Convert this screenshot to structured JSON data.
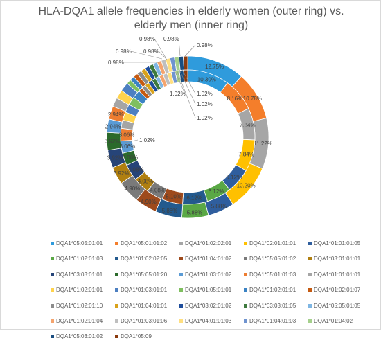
{
  "chart_data": {
    "type": "doughnut",
    "title": "HLA-DQA1 allele frequencies in elderly women (outer ring) vs. elderly men (inner ring)",
    "categories": [
      "DQA1*05:05:01:01",
      "DQA1*05:01:01:02",
      "DQA1*01:02:02:01",
      "DQA1*02:01:01:01",
      "DQA1*01:01:01:05",
      "DQA1*01:02:01:03",
      "DQA1*01:02:02:05",
      "DQA1*01:04:01:02",
      "DQA1*05:05:01:02",
      "DQA1*03:01:01:01",
      "DQA1*03:03:01:01",
      "DQA1*05:05:01:20",
      "DQA1*01:03:01:02",
      "DQA1*05:01:01:03",
      "DQA1*01:01:01:01",
      "DQA1*01:02:01:01",
      "DQA1*01:03:01:01",
      "DQA1*01:05:01:01",
      "DQA1*01:02:01:01",
      "DQA1*01:02:01:07",
      "DQA1*01:02:01:10",
      "DQA1*01:04:01:01",
      "DQA1*03:02:01:02",
      "DQA1*03:03:01:05",
      "DQA1*05:05:01:05",
      "DQA1*01:02:01:04",
      "DQA1*01:03:01:06",
      "DQA1*04:01:01:03",
      "DQA1*01:04:01:03",
      "DQA1*01:04:02",
      "DQA1*05:03:01:02",
      "DQA1*05:09"
    ],
    "colors": [
      "#2f9bdc",
      "#f47e2b",
      "#a6a6a6",
      "#ffc000",
      "#2f5e9e",
      "#5aa845",
      "#235a8e",
      "#9e4a1c",
      "#7a7a7a",
      "#b07f10",
      "#264478",
      "#2b6a2b",
      "#5b9bd5",
      "#ed7d31",
      "#a5a5a5",
      "#ffd34d",
      "#4d7fc1",
      "#7fbf5f",
      "#3b83c4",
      "#c55a11",
      "#8c8c8c",
      "#d9a21b",
      "#1f4e9c",
      "#3e7a3e",
      "#7fb6e3",
      "#f4a46e",
      "#bfbfbf",
      "#ffdf80",
      "#6f93cf",
      "#a5d08c",
      "#1a4d80",
      "#8a3a0e"
    ],
    "series": [
      {
        "ring": "outer",
        "values": [
          12.75,
          10.78,
          11.22,
          10.2,
          5.88,
          5.88,
          5.88,
          4.9,
          4.9,
          3.92,
          3.92,
          3.92,
          2.94,
          2.94,
          1.96,
          1.96,
          1.96,
          1.02,
          1.02,
          1.02,
          1.02,
          1.02,
          0.98,
          0.98,
          0.98,
          0.98,
          0.98,
          0.98,
          0.98,
          0.98,
          0.98,
          0.98
        ]
      },
      {
        "ring": "inner",
        "values": [
          10.3,
          8.16,
          7.84,
          7.84,
          6.12,
          6.12,
          6.12,
          5.1,
          4.08,
          4.08,
          4.08,
          3.06,
          3.06,
          3.06,
          2.04,
          2.04,
          2.04,
          2.04,
          2.04,
          1.02,
          1.02,
          1.02,
          1.02,
          1.02,
          1.02,
          1.02,
          1.02,
          1.02,
          1.02,
          1.02,
          1.02,
          1.02
        ]
      }
    ],
    "data_labels": {
      "outer": [
        "12.75%",
        "10.78%",
        "11.22%",
        "10.20%",
        "5.88%",
        "5.88%",
        "5.88%",
        "4.90%",
        "4.90%",
        "3.92%",
        "3.92%",
        "3.92%",
        "2.94%",
        "2.94%",
        "1.96%",
        "1.96%",
        "1.96%",
        "1.02%",
        "1.02%",
        "1.02%",
        "1.02%",
        "1.02%",
        "0.98%",
        "0.98%",
        "0.98%",
        "0.98%",
        "0.98%",
        "0.98%",
        "0.98%",
        "0.98%",
        "0.98%",
        "0.98%"
      ],
      "inner": [
        "10.30%",
        "8.16%",
        "7.84%",
        "7.84%",
        "6.12%",
        "6.12%",
        "6.12%",
        "5.10%",
        "4.08%",
        "4.08%",
        "4.08%",
        "3.06%",
        "3.06%",
        "3.06%",
        "2.04%",
        "2.04%",
        "2.04%",
        "2.04%",
        "2.04%",
        "1.02%",
        "1.02%",
        "1.02%",
        "1.02%",
        "1.02%",
        "1.02%",
        "1.02%",
        "1.02%",
        "1.02%",
        "1.02%",
        "1.02%",
        "1.02%",
        "1.02%"
      ]
    },
    "legend_position": "bottom",
    "grid": false
  }
}
